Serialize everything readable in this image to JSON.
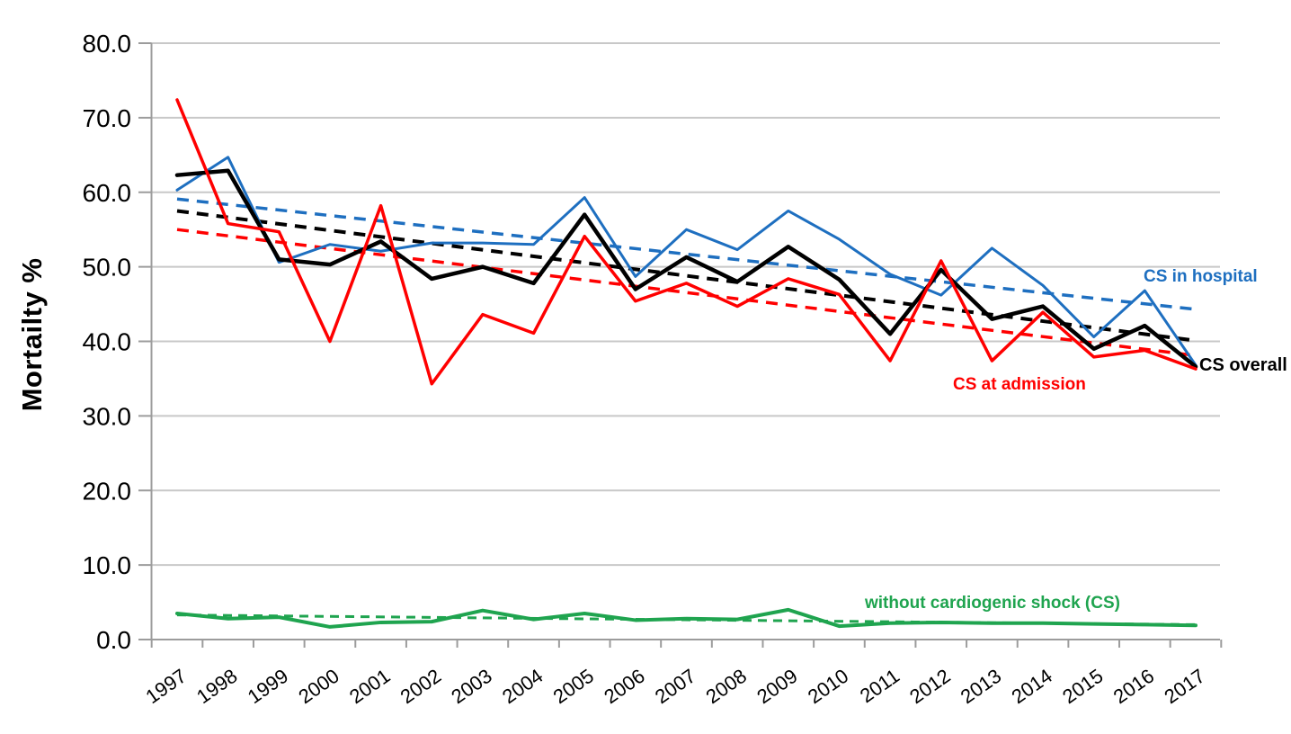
{
  "y_axis": {
    "label": "Mortailty %",
    "ticks": [
      "80.0",
      "70.0",
      "60.0",
      "50.0",
      "40.0",
      "30.0",
      "20.0",
      "10.0",
      "0.0"
    ],
    "min": 0,
    "max": 80
  },
  "labels": [
    {
      "text": "CS in hospital",
      "color": "#1E6FC0"
    },
    {
      "text": "CS overall",
      "color": "#000000"
    },
    {
      "text": "CS at admission",
      "color": "#FF0000"
    },
    {
      "text": "without cardiogenic shock (CS)",
      "color": "#1FA44F"
    }
  ],
  "chart_data": {
    "type": "line",
    "title": "",
    "xlabel": "",
    "ylabel": "Mortailty %",
    "ylim": [
      0,
      80
    ],
    "grid": true,
    "categories": [
      "1997",
      "1998",
      "1999",
      "2000",
      "2001",
      "2002",
      "2003",
      "2004",
      "2005",
      "2006",
      "2007",
      "2008",
      "2009",
      "2010",
      "2011",
      "2012",
      "2013",
      "2014",
      "2015",
      "2016",
      "2017"
    ],
    "series": [
      {
        "name": "CS in hospital",
        "color": "#1E6FC0",
        "style": "solid",
        "width": 3,
        "values": [
          60.3,
          64.7,
          50.6,
          53.0,
          52.1,
          53.2,
          53.2,
          53.0,
          59.3,
          48.7,
          55.0,
          52.3,
          57.5,
          53.7,
          49.0,
          46.2,
          52.5,
          47.5,
          40.6,
          46.8,
          36.8
        ]
      },
      {
        "name": "CS overall",
        "color": "#000000",
        "style": "solid",
        "width": 4.5,
        "values": [
          62.3,
          62.9,
          51.0,
          50.3,
          53.4,
          48.4,
          50.0,
          47.8,
          57.0,
          47.0,
          51.3,
          48.0,
          52.7,
          48.3,
          41.0,
          49.6,
          43.0,
          44.7,
          39.0,
          42.1,
          36.6
        ]
      },
      {
        "name": "CS at admission",
        "color": "#FF0000",
        "style": "solid",
        "width": 3.5,
        "values": [
          72.4,
          55.8,
          54.7,
          40.0,
          58.2,
          34.3,
          43.6,
          41.1,
          54.1,
          45.4,
          47.8,
          44.7,
          48.4,
          46.3,
          37.4,
          50.8,
          37.4,
          43.9,
          37.9,
          38.8,
          36.3
        ]
      },
      {
        "name": "without cardiogenic shock (CS)",
        "color": "#1FA44F",
        "style": "solid",
        "width": 4,
        "values": [
          3.5,
          2.8,
          3.0,
          1.7,
          2.3,
          2.4,
          3.9,
          2.7,
          3.5,
          2.6,
          2.8,
          2.7,
          4.0,
          1.8,
          2.2,
          2.3,
          2.2,
          2.2,
          2.1,
          2.0,
          1.9
        ]
      },
      {
        "name": "CS in hospital linear trend",
        "color": "#1E6FC0",
        "style": "dashed",
        "width": 3.5,
        "trend": [
          59.1,
          44.3
        ]
      },
      {
        "name": "CS overall linear trend",
        "color": "#000000",
        "style": "dashed",
        "width": 4,
        "trend": [
          57.5,
          40.1
        ]
      },
      {
        "name": "CS at admission linear trend",
        "color": "#FF0000",
        "style": "dashed",
        "width": 3.5,
        "trend": [
          55.0,
          38.1
        ]
      },
      {
        "name": "without cardiogenic shock linear trend",
        "color": "#1FA44F",
        "style": "dashed",
        "width": 3,
        "trend": [
          3.3,
          2.0
        ]
      }
    ]
  }
}
